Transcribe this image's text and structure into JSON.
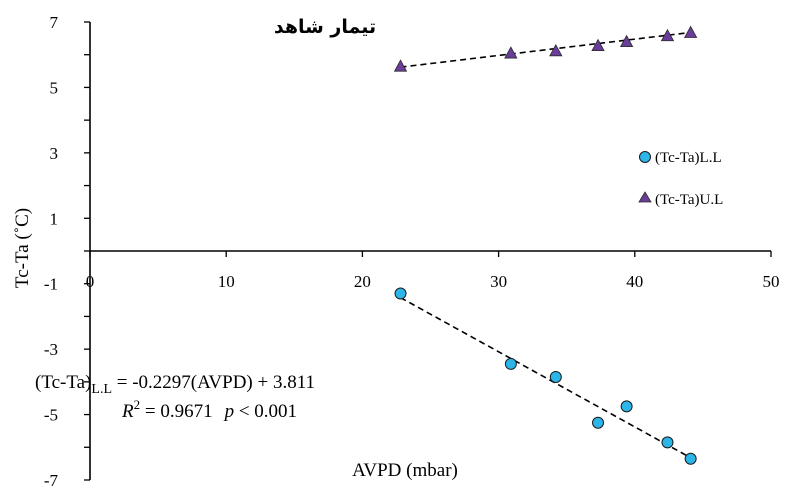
{
  "chart_data": {
    "type": "scatter",
    "title": "تیمار شاهد",
    "xlabel": "AVPD (mbar)",
    "ylabel": "Tc-Ta (˚C)",
    "xlim": [
      0,
      50
    ],
    "ylim": [
      -7,
      7
    ],
    "x_ticks": [
      "0",
      "10",
      "20",
      "30",
      "40",
      "50"
    ],
    "y_ticks": [
      "7",
      "5",
      "3",
      "1",
      "-1",
      "-3",
      "-5",
      "-7"
    ],
    "legend_position": "right",
    "series": [
      {
        "name": "(Tc-Ta)L.L",
        "marker": "circle",
        "color": "#2bb5e8",
        "points": [
          {
            "x": 22.8,
            "y": -1.3
          },
          {
            "x": 30.9,
            "y": -3.45
          },
          {
            "x": 34.2,
            "y": -3.85
          },
          {
            "x": 37.3,
            "y": -5.25
          },
          {
            "x": 39.4,
            "y": -4.75
          },
          {
            "x": 42.4,
            "y": -5.85
          },
          {
            "x": 44.1,
            "y": -6.35
          }
        ],
        "trendline": {
          "slope": -0.2297,
          "intercept": 3.811
        }
      },
      {
        "name": "(Tc-Ta)U.L",
        "marker": "triangle",
        "color": "#6a3d9a",
        "points": [
          {
            "x": 22.8,
            "y": 5.65
          },
          {
            "x": 30.9,
            "y": 6.05
          },
          {
            "x": 34.2,
            "y": 6.12
          },
          {
            "x": 37.3,
            "y": 6.28
          },
          {
            "x": 39.4,
            "y": 6.4
          },
          {
            "x": 42.4,
            "y": 6.58
          },
          {
            "x": 44.1,
            "y": 6.68
          }
        ],
        "trendline": {
          "from": [
            22.8,
            5.62
          ],
          "to": [
            44.1,
            6.68
          ]
        }
      }
    ],
    "equation": {
      "lhs_main": "(Tc-Ta)",
      "lhs_sub": "L.L",
      "rhs": " = -0.2297(AVPD) + 3.811",
      "r2_label": "R",
      "r2_sup": "2",
      "r2_value": " = 0.9671",
      "p_label": "p",
      "p_value": " < 0.001"
    }
  }
}
